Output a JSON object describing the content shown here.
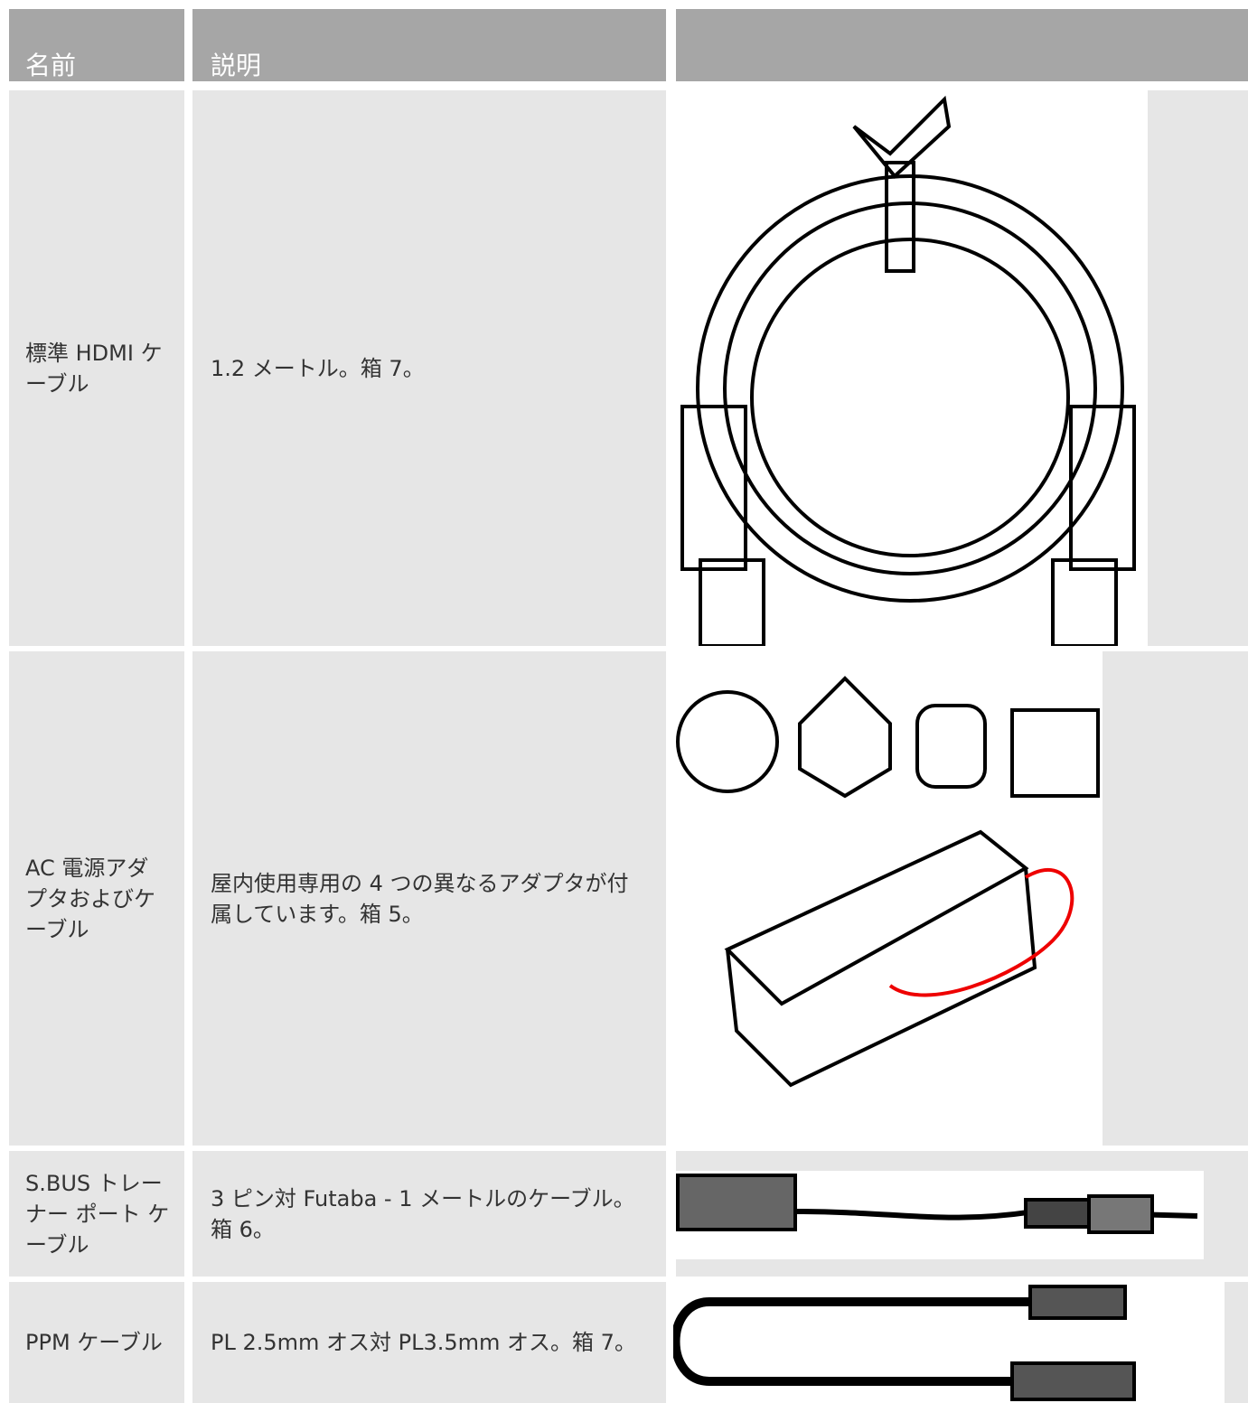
{
  "table": {
    "header": [
      "名前",
      "説明"
    ],
    "rows": [
      [
        "標準 HDMI ケーブル",
        "1.2 メートル。箱 7。"
      ],
      [
        "AC 電源アダプタおよびケーブル",
        "屋内使用専用の 4 つの異なるアダプタが付属しています。箱 5。"
      ],
      [
        "S.BUS トレーナー ポート ケーブル",
        "3 ピン対 Futaba - 1 メートルのケーブル。箱 6。"
      ],
      [
        "PPM ケーブル",
        "PL 2.5mm オス対 PL3.5mm オス。箱 7。"
      ]
    ]
  }
}
